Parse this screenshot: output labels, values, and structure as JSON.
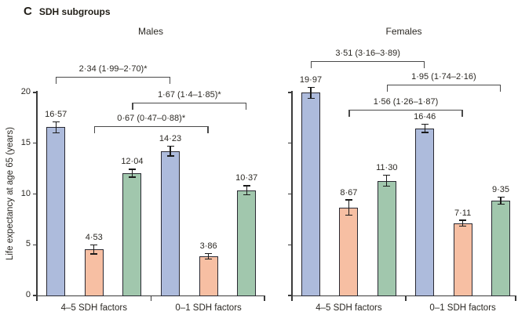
{
  "figure": {
    "panel_letter": "C",
    "title": "SDH subgroups",
    "ylabel": "Life expectancy at age 65 (years)"
  },
  "chart_data": {
    "type": "bar",
    "title": "SDH subgroups",
    "ylabel": "Life expectancy at age 65 (years)",
    "ylim": [
      0,
      20
    ],
    "yticks": [
      0,
      5,
      10,
      15,
      20
    ],
    "ytick_labels": [
      "0",
      "5",
      "10",
      "15",
      "20"
    ],
    "grid": false,
    "legend": "none",
    "error_bars": true,
    "categories": [
      "4–5 SDH factors",
      "0–1 SDH factors"
    ],
    "series_colors": {
      "blue": "#adbbdc",
      "orange": "#f7bfa3",
      "green": "#a1c7ad"
    },
    "panels": [
      {
        "title": "Males",
        "bars": [
          {
            "group": "4–5 SDH factors",
            "series": "blue",
            "value": 16.57,
            "label": "16·57",
            "err": 0.55
          },
          {
            "group": "4–5 SDH factors",
            "series": "orange",
            "value": 4.53,
            "label": "4·53",
            "err": 0.45
          },
          {
            "group": "4–5 SDH factors",
            "series": "green",
            "value": 12.04,
            "label": "12·04",
            "err": 0.4
          },
          {
            "group": "0–1 SDH factors",
            "series": "blue",
            "value": 14.23,
            "label": "14·23",
            "err": 0.5
          },
          {
            "group": "0–1 SDH factors",
            "series": "orange",
            "value": 3.86,
            "label": "3·86",
            "err": 0.3
          },
          {
            "group": "0–1 SDH factors",
            "series": "green",
            "value": 10.37,
            "label": "10·37",
            "err": 0.45
          }
        ],
        "comparisons": [
          {
            "label": "2·34 (1·99–2·70)*",
            "from": 0,
            "to": 3,
            "level": 0
          },
          {
            "label": "1·67 (1·4–1·85)*",
            "from": 2,
            "to": 5,
            "level": 1
          },
          {
            "label": "0·67 (0·47–0·88)*",
            "from": 1,
            "to": 4,
            "level": 2
          }
        ]
      },
      {
        "title": "Females",
        "bars": [
          {
            "group": "4–5 SDH factors",
            "series": "blue",
            "value": 19.97,
            "label": "19·97",
            "err": 0.55
          },
          {
            "group": "4–5 SDH factors",
            "series": "orange",
            "value": 8.67,
            "label": "8·67",
            "err": 0.75
          },
          {
            "group": "4–5 SDH factors",
            "series": "green",
            "value": 11.3,
            "label": "11·30",
            "err": 0.55
          },
          {
            "group": "0–1 SDH factors",
            "series": "blue",
            "value": 16.46,
            "label": "16·46",
            "err": 0.4
          },
          {
            "group": "0–1 SDH factors",
            "series": "orange",
            "value": 7.11,
            "label": "7·11",
            "err": 0.3
          },
          {
            "group": "0–1 SDH factors",
            "series": "green",
            "value": 9.35,
            "label": "9·35",
            "err": 0.35
          }
        ],
        "comparisons": [
          {
            "label": "3·51 (3·16–3·89)",
            "from": 0,
            "to": 3,
            "level": 0
          },
          {
            "label": "1·95 (1·74–2·16)",
            "from": 2,
            "to": 5,
            "level": 1
          },
          {
            "label": "1·56 (1·26–1·87)",
            "from": 1,
            "to": 4,
            "level": 2
          }
        ]
      }
    ]
  }
}
